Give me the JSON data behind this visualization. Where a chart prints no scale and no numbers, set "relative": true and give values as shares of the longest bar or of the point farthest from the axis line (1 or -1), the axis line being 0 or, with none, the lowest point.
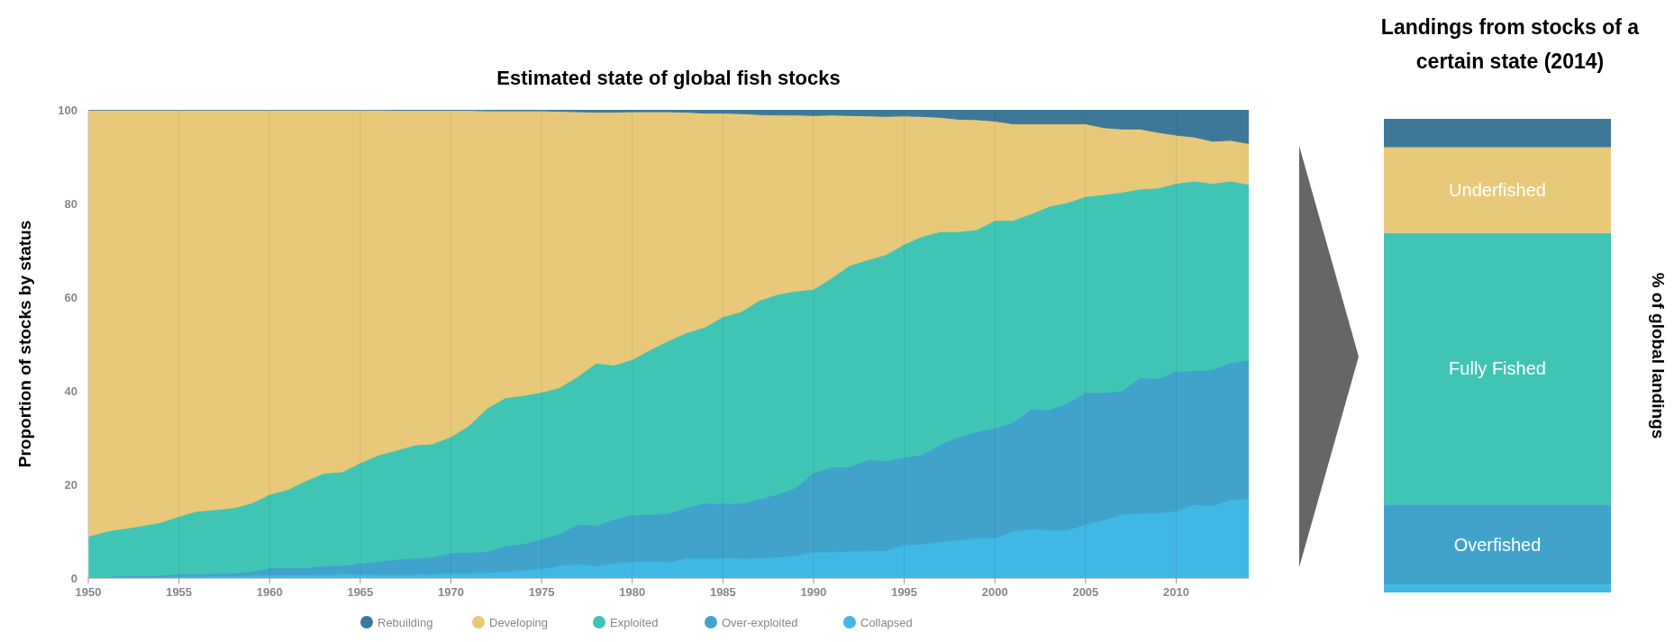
{
  "chart_data": [
    {
      "type": "area",
      "title": "Estimated state of global fish stocks",
      "ylabel": "Proportion of stocks by status",
      "stacked": true,
      "grid": "x",
      "legend": "bottom",
      "xlim": [
        1950,
        2014
      ],
      "ylim": [
        0,
        100
      ],
      "xticks": [
        1950,
        1955,
        1960,
        1965,
        1970,
        1975,
        1980,
        1985,
        1990,
        1995,
        2000,
        2005,
        2010
      ],
      "yticks": [
        0,
        20,
        40,
        60,
        80,
        100
      ],
      "x": [
        1950,
        1951,
        1952,
        1953,
        1954,
        1955,
        1956,
        1957,
        1958,
        1959,
        1960,
        1961,
        1962,
        1963,
        1964,
        1965,
        1966,
        1967,
        1968,
        1969,
        1970,
        1971,
        1972,
        1973,
        1974,
        1975,
        1976,
        1977,
        1978,
        1979,
        1980,
        1981,
        1982,
        1983,
        1984,
        1985,
        1986,
        1987,
        1988,
        1989,
        1990,
        1991,
        1992,
        1993,
        1994,
        1995,
        1996,
        1997,
        1998,
        1999,
        2000,
        2001,
        2002,
        2003,
        2004,
        2005,
        2006,
        2007,
        2008,
        2009,
        2010,
        2011,
        2012,
        2013,
        2014
      ],
      "series": [
        {
          "name": "Collapsed",
          "color": "#41b7e6",
          "values": [
            0,
            0.1,
            0.2,
            0.2,
            0.3,
            0.4,
            0.4,
            0.5,
            0.5,
            0.6,
            0.7,
            0.7,
            0.7,
            0.8,
            0.8,
            0.9,
            0.8,
            0.8,
            0.8,
            0.9,
            1.1,
            1.1,
            1.2,
            1.4,
            1.7,
            2.0,
            2.7,
            3.0,
            2.6,
            3.2,
            3.5,
            3.6,
            3.4,
            4.3,
            4.3,
            4.3,
            4.2,
            4.3,
            4.5,
            4.8,
            5.6,
            5.6,
            5.8,
            5.8,
            5.9,
            7.1,
            7.3,
            7.8,
            8.1,
            8.6,
            8.6,
            10.0,
            10.5,
            10.2,
            10.2,
            11.5,
            12.4,
            13.6,
            13.9,
            13.9,
            14.4,
            15.7,
            15.5,
            16.7,
            17.0
          ]
        },
        {
          "name": "Over-exploited",
          "color": "#41a3cb",
          "values": [
            0,
            0.2,
            0.3,
            0.3,
            0.3,
            0.5,
            0.5,
            0.5,
            0.6,
            0.8,
            1.5,
            1.5,
            1.5,
            1.9,
            1.9,
            2.3,
            2.8,
            3.2,
            3.5,
            3.6,
            4.3,
            4.4,
            4.5,
            5.5,
            5.6,
            6.4,
            6.8,
            8.5,
            8.7,
            9.4,
            10.0,
            10.0,
            10.4,
            10.8,
            11.7,
            11.7,
            11.8,
            12.6,
            13.4,
            14.5,
            16.9,
            18.1,
            18.0,
            19.5,
            19.2,
            18.7,
            19.1,
            20.8,
            22.1,
            22.7,
            23.4,
            23.3,
            25.6,
            25.7,
            27.2,
            28.1,
            27.2,
            26.4,
            28.9,
            28.7,
            29.8,
            28.6,
            29.0,
            29.3,
            29.6
          ]
        },
        {
          "name": "Exploited",
          "color": "#40c5b5",
          "values": [
            8.9,
            9.7,
            10.1,
            10.7,
            11.3,
            12.3,
            13.4,
            13.6,
            13.9,
            14.6,
            15.7,
            16.7,
            18.6,
            19.7,
            20.0,
            21.4,
            22.7,
            23.3,
            24.1,
            24.2,
            24.8,
            27.1,
            30.6,
            31.6,
            31.7,
            31.3,
            31.2,
            31.6,
            34.6,
            32.9,
            33.2,
            35.2,
            36.9,
            37.3,
            37.6,
            39.8,
            40.9,
            42.4,
            42.7,
            42.0,
            39.2,
            40.4,
            43.0,
            42.7,
            44.0,
            45.5,
            46.6,
            45.4,
            43.8,
            43.1,
            44.4,
            43.1,
            41.7,
            43.5,
            42.8,
            41.9,
            42.3,
            42.4,
            40.3,
            40.7,
            40.1,
            40.5,
            39.8,
            38.8,
            37.5
          ]
        },
        {
          "name": "Developing",
          "color": "#e8c979",
          "values": [
            91.1,
            90.0,
            89.4,
            88.8,
            88.1,
            86.8,
            85.7,
            85.4,
            85.0,
            84.0,
            82.1,
            81.1,
            79.2,
            77.6,
            77.3,
            75.4,
            73.7,
            72.6,
            71.5,
            71.2,
            69.7,
            67.3,
            63.5,
            61.3,
            60.8,
            60.1,
            59.0,
            56.5,
            53.6,
            54.0,
            52.9,
            50.8,
            48.9,
            47.1,
            45.7,
            43.5,
            42.3,
            39.7,
            38.3,
            37.6,
            37.1,
            34.8,
            32.0,
            30.7,
            29.5,
            27.4,
            25.6,
            24.4,
            24.0,
            23.5,
            21.2,
            20.6,
            19.2,
            17.6,
            16.8,
            15.5,
            14.3,
            13.5,
            12.8,
            11.9,
            10.3,
            9.4,
            9.0,
            8.7,
            8.7
          ]
        },
        {
          "name": "Rebuilding",
          "color": "#3e7899",
          "values": [
            0,
            0,
            0,
            0,
            0,
            0,
            0,
            0,
            0,
            0,
            0,
            0,
            0,
            0,
            0,
            0,
            0,
            0.1,
            0.1,
            0.1,
            0.1,
            0.1,
            0.2,
            0.2,
            0.2,
            0.2,
            0.3,
            0.4,
            0.5,
            0.5,
            0.4,
            0.4,
            0.4,
            0.5,
            0.7,
            0.7,
            0.8,
            1.0,
            1.1,
            1.1,
            1.2,
            1.1,
            1.2,
            1.3,
            1.4,
            1.3,
            1.4,
            1.6,
            2.0,
            2.1,
            2.4,
            3.0,
            3.0,
            3.0,
            3.0,
            3.0,
            3.8,
            4.1,
            4.1,
            4.8,
            5.4,
            5.8,
            6.7,
            6.5,
            7.2
          ]
        }
      ]
    },
    {
      "type": "bar",
      "title": "Landings from stocks of a certain state (2014)",
      "ylabel": "% of global landings",
      "stacked": true,
      "relative": true,
      "categories": [
        null
      ],
      "series": [
        {
          "color": "#41b7e6",
          "values": [
            0.017
          ]
        },
        {
          "name": "Overfished",
          "color": "#41a3cb",
          "values": [
            0.169
          ]
        },
        {
          "name": "Fully Fished",
          "color": "#40c5b5",
          "values": [
            0.573
          ]
        },
        {
          "name": "Underfished",
          "color": "#e8c979",
          "values": [
            0.181
          ]
        },
        {
          "color": "#3e7899",
          "values": [
            0.06
          ]
        }
      ]
    }
  ]
}
